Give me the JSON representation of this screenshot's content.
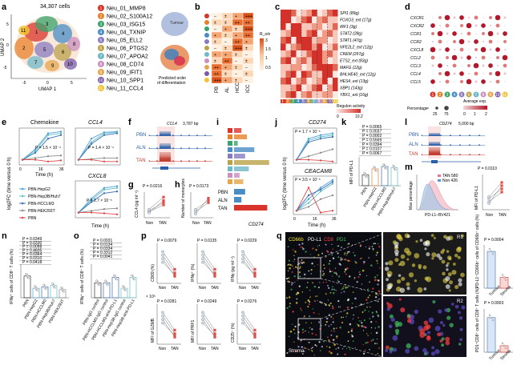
{
  "panels": [
    "a",
    "b",
    "c",
    "d",
    "e",
    "f",
    "g",
    "h",
    "i",
    "j",
    "k",
    "l",
    "m",
    "n",
    "o",
    "p",
    "q"
  ],
  "a": {
    "cell_count": "34,307 cells",
    "xlabel": "UMAP 1",
    "ylabel": "UMAP 2",
    "x_ticks": [
      "-5",
      "0",
      "5"
    ],
    "y_ticks": [
      "5",
      "0",
      "-5"
    ],
    "clusters": [
      {
        "id": "1",
        "name": "Neu_01_MMP8",
        "color": "#d9342b"
      },
      {
        "id": "2",
        "name": "Neu_02_S100A12",
        "color": "#e8812b"
      },
      {
        "id": "3",
        "name": "Neu_03_ISG15",
        "color": "#3aa26a"
      },
      {
        "id": "4",
        "name": "Neu_04_TXNIP",
        "color": "#4a8cc4"
      },
      {
        "id": "5",
        "name": "Neu_05_ELL2",
        "color": "#8a7bc0"
      },
      {
        "id": "6",
        "name": "Neu_06_PTGS2",
        "color": "#b9a24a"
      },
      {
        "id": "7",
        "name": "Neu_07_APOA2",
        "color": "#6fb8c8"
      },
      {
        "id": "8",
        "name": "Neu_08_CD74",
        "color": "#c98fbf"
      },
      {
        "id": "9",
        "name": "Neu_09_IFIT1",
        "color": "#e5a54b"
      },
      {
        "id": "10",
        "name": "Neu_10_SPP1",
        "color": "#7a5aa8"
      },
      {
        "id": "11",
        "name": "Neu_11_CCL4",
        "color": "#f2c230"
      }
    ],
    "umap_labels": [
      "1",
      "2",
      "3",
      "4",
      "5",
      "6",
      "7",
      "8",
      "9",
      "10",
      "11"
    ],
    "tumour_label": "Tumour",
    "order_caption": "Predicted order of differentiation"
  },
  "b": {
    "columns": [
      "PB",
      "AL",
      "HCC",
      "ICC"
    ],
    "legend_title": "R_o/e",
    "legend_items": [
      "+++ >3",
      "++ 1-3",
      "+ 1-1.5",
      "± 0.5-1",
      "– 0-0.5"
    ],
    "legend_values": [
      "3",
      "1.5",
      "1",
      "0.5"
    ]
  },
  "c": {
    "genes": [
      "SPI1 (89g)",
      "FOXO3_ext (17g)",
      "IRF1 (3g)",
      "STAT2 (28g)",
      "STAT1 (47g)",
      "NFE2L2_ext (12g)",
      "CREM (297g)",
      "ETS2_ext (83g)",
      "MAFG (12g)",
      "BHLHE40_ext (12g)",
      "HES4_ext (13g)",
      "XBP1 (143g)",
      "YBX1_ext (16g)"
    ],
    "legend_title": "Regulon activity",
    "legend_min": "0",
    "legend_max": "10.2"
  },
  "d": {
    "genes": [
      "CXCR1",
      "CXCR2",
      "CCR1",
      "CCR2",
      "CXCL8",
      "CCL2",
      "CCL3",
      "CCL4",
      "CCL5"
    ],
    "legend_title": "Percentage",
    "legend_values": [
      "0",
      "25",
      "75"
    ],
    "legend_color": "Average exp.",
    "color_scale": [
      "0",
      "1",
      "2"
    ]
  },
  "e": {
    "ylabel": "log2FC (time versus 0 h)",
    "xlabel": "Time (h)",
    "x_ticks": [
      "0",
      "16",
      "36"
    ],
    "titles": [
      "Chemokine",
      "CCL4",
      "CXCL8"
    ],
    "pvals": [
      "P = 1.5 × 10⁻⁴",
      "P = 1.4 × 10⁻⁴",
      "P = 2.7 × 10⁻⁵"
    ],
    "legend": [
      {
        "name": "PBN-HepG2",
        "color": "#4d9fd8"
      },
      {
        "name": "PBN-Hep3B/Huh7",
        "color": "#63c0c4"
      },
      {
        "name": "PBN-HCCLM3",
        "color": "#3b6fb5"
      },
      {
        "name": "PBN-HEK293T",
        "color": "#8c8c8c"
      },
      {
        "name": "PBN",
        "color": "#e04a4a"
      }
    ]
  },
  "f": {
    "gene": "CCL4",
    "scale": "3,787 bp",
    "tracks": [
      "PBN",
      "ALN",
      "TAN"
    ]
  },
  "g": {
    "ylabel": "CCL4 (pg ml⁻¹)",
    "pval": "P = 0.0216",
    "groups": [
      "Non",
      "TAN"
    ]
  },
  "h": {
    "ylabel": "Number of monocytes",
    "pval": "P = 0.0173",
    "groups": [
      "Non",
      "TAN"
    ]
  },
  "i": {
    "legend_title": "Sig",
    "rows": [
      "PBN",
      "ALN",
      "TAN"
    ],
    "xlabel": "CD274"
  },
  "j": {
    "ylabel": "log2FC (time versus 0 h)",
    "xlabel": "Time (h)",
    "x_ticks": [
      "0",
      "16",
      "36"
    ],
    "titles": [
      "CD274",
      "CEACAM8"
    ],
    "pvals": [
      "P = 1.7 × 10⁻⁵",
      "P = 3.5 × 10⁻⁵"
    ]
  },
  "k": {
    "ylabel": "MFI of PD-L1",
    "pvals": [
      "P = 0.0065",
      "P = 0.0037",
      "P = 0.0002",
      "P = 0.5569",
      "P = 0.0394",
      "P = 0.0107",
      "P = 0.0067"
    ],
    "groups": [
      "PBN",
      "PBN-HepG2",
      "PBN-HCCLM3",
      "PBN-Hep3B/Huh7"
    ]
  },
  "l": {
    "gene": "CD274",
    "scale": "5,000 bp",
    "tracks": [
      "PBN",
      "ALN",
      "TAN"
    ]
  },
  "m": {
    "xlabel": "PD-L1–BV421",
    "ylabel": "Max percentage",
    "legend": [
      "TAN 580",
      "Non 426"
    ],
    "pval": "P = 0.0110",
    "ylabel2": "MFI of PD-L1",
    "groups": [
      "Non",
      "TAN"
    ]
  },
  "n": {
    "ylabel": "IFNγ⁺ cells of CD8⁺ T cells (%)",
    "pvals": [
      "P = 0.0349",
      "P = 0.0330",
      "P = 0.0098",
      "P = 0.4605",
      "P = 0.0364",
      "P = 0.0310",
      "P = 0.0418"
    ],
    "groups": [
      "PBN",
      "PBN-HepG2",
      "PBN-HCCLM3",
      "PBN-Hep3B/Huh7",
      "PBN-HEK293T"
    ]
  },
  "o": {
    "ylabel": "IFNγ⁺ cells of CD8⁺ T cells (%)",
    "pvals": [
      "P = 0.0031",
      "P = 0.0134",
      "P = 0.0334",
      "P = 0.3312",
      "P = 0.0041"
    ],
    "groups": [
      "PBN-IgG control",
      "PBN-HCCLM3-IgG control",
      "PBN-HCCLM3-anti-PD-L1",
      "PBN-Hep3B-IgG control",
      "PBN-Hep3B-anti-PD-L1"
    ]
  },
  "p": {
    "pvals": [
      "P = 0.0079",
      "P = 0.0135",
      "P = 0.0229",
      "P = 0.0281",
      "P = 0.0249",
      "P = 0.0276"
    ],
    "ylabels": [
      "CD69 (%)",
      "IFNγ⁺ (%)",
      "IFNγ (pg ml⁻¹)",
      "MFI of GZMB",
      "MFI of PRF1",
      "CD25⁺ (%)"
    ],
    "groups": [
      "Non",
      "TAN"
    ],
    "scale": "× 10³"
  },
  "q": {
    "channels": [
      "CD66b",
      "PD-L1",
      "CD8",
      "PD1"
    ],
    "channel_colors": [
      "#f2e030",
      "#ffffff",
      "#ff4040",
      "#40c060"
    ],
    "regions": [
      "R1",
      "R2"
    ],
    "corner": "Stroma",
    "bar_ylabels": [
      "PD-L1⁺CD66b⁺ cells of CD66b⁺ cells (%)",
      "PD1⁺CD8⁺ cells of CD8⁺ T cells (%)"
    ],
    "bar_groups": [
      "Tumour",
      "Stroma"
    ],
    "pvals": [
      "P = 0.0004",
      "P = 0.0003"
    ]
  }
}
